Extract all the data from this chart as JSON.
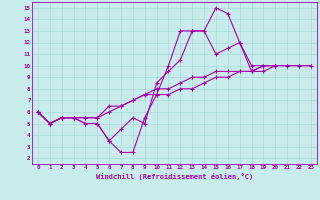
{
  "xlabel": "Windchill (Refroidissement éolien,°C)",
  "xlim": [
    -0.5,
    23.5
  ],
  "ylim": [
    1.5,
    15.5
  ],
  "xticks": [
    0,
    1,
    2,
    3,
    4,
    5,
    6,
    7,
    8,
    9,
    10,
    11,
    12,
    13,
    14,
    15,
    16,
    17,
    18,
    19,
    20,
    21,
    22,
    23
  ],
  "yticks": [
    2,
    3,
    4,
    5,
    6,
    7,
    8,
    9,
    10,
    11,
    12,
    13,
    14,
    15
  ],
  "background_color": "#c8ecec",
  "grid_color": "#a8d8d8",
  "line_color": "#aa00aa",
  "line_width": 0.8,
  "markersize": 3,
  "series": [
    {
      "x": [
        0,
        1,
        2,
        3,
        4,
        5,
        6,
        7,
        8,
        9,
        10,
        11,
        12,
        13,
        14,
        15,
        16,
        17,
        18,
        19,
        20,
        21,
        22,
        23
      ],
      "y": [
        6.0,
        5.0,
        5.5,
        5.5,
        5.0,
        5.0,
        3.5,
        2.5,
        2.5,
        5.5,
        7.5,
        10.0,
        13.0,
        13.0,
        13.0,
        15.0,
        14.5,
        12.0,
        10.0,
        10.0,
        10.0,
        null,
        null,
        null
      ]
    },
    {
      "x": [
        0,
        1,
        2,
        3,
        4,
        5,
        6,
        7,
        8,
        9,
        10,
        11,
        12,
        13,
        14,
        15,
        16,
        17,
        18,
        19,
        20,
        21,
        22,
        23
      ],
      "y": [
        6.0,
        5.0,
        5.5,
        5.5,
        5.0,
        5.0,
        3.5,
        4.5,
        5.5,
        5.0,
        8.5,
        9.5,
        10.5,
        13.0,
        13.0,
        11.0,
        11.5,
        12.0,
        9.5,
        10.0,
        10.0,
        null,
        null,
        null
      ]
    },
    {
      "x": [
        0,
        1,
        2,
        3,
        4,
        5,
        6,
        7,
        8,
        9,
        10,
        11,
        12,
        13,
        14,
        15,
        16,
        17,
        18,
        19,
        20,
        21,
        22,
        23
      ],
      "y": [
        6.0,
        5.0,
        5.5,
        5.5,
        5.5,
        5.5,
        6.0,
        6.5,
        7.0,
        7.5,
        8.0,
        8.0,
        8.5,
        9.0,
        9.0,
        9.5,
        9.5,
        9.5,
        9.5,
        10.0,
        10.0,
        10.0,
        10.0,
        10.0
      ]
    },
    {
      "x": [
        0,
        1,
        2,
        3,
        4,
        5,
        6,
        7,
        8,
        9,
        10,
        11,
        12,
        13,
        14,
        15,
        16,
        17,
        18,
        19,
        20,
        21,
        22,
        23
      ],
      "y": [
        6.0,
        5.0,
        5.5,
        5.5,
        5.5,
        5.5,
        6.5,
        6.5,
        7.0,
        7.5,
        7.5,
        7.5,
        8.0,
        8.0,
        8.5,
        9.0,
        9.0,
        9.5,
        9.5,
        9.5,
        10.0,
        10.0,
        10.0,
        10.0
      ]
    }
  ]
}
